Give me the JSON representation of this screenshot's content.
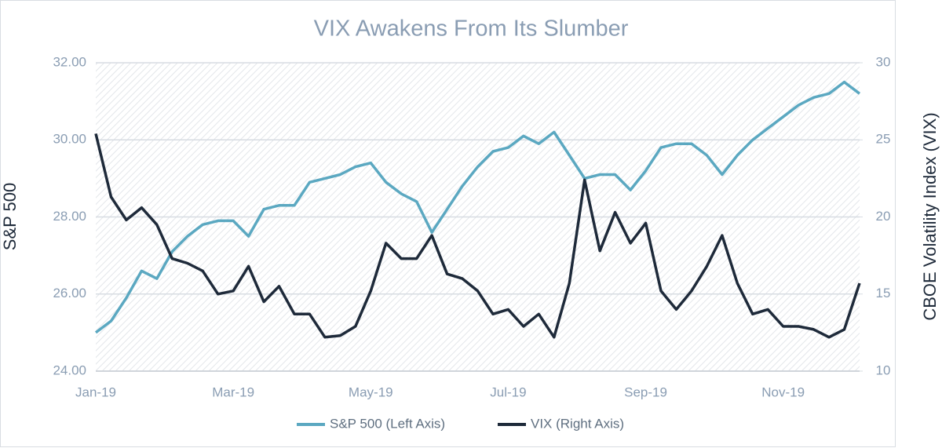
{
  "chart_data": {
    "type": "line",
    "title": "VIX Awakens From Its Slumber",
    "y_label": "S&P 500",
    "y2_label": "CBOE Volatility Index (VIX)",
    "categories": [
      "Jan-19",
      null,
      null,
      null,
      null,
      null,
      null,
      null,
      null,
      "Mar-19",
      null,
      null,
      null,
      null,
      null,
      null,
      null,
      null,
      "May-19",
      null,
      null,
      null,
      null,
      null,
      null,
      null,
      null,
      "Jul-19",
      null,
      null,
      null,
      null,
      null,
      null,
      null,
      null,
      "Sep-19",
      null,
      null,
      null,
      null,
      null,
      null,
      null,
      null,
      "Nov-19",
      null,
      null,
      null,
      null,
      null
    ],
    "series": [
      {
        "name": "S&P 500 (Left Axis)",
        "color": "#5ba8c1",
        "values": [
          25.0,
          25.3,
          25.9,
          26.6,
          26.4,
          27.1,
          27.5,
          27.8,
          27.9,
          27.9,
          27.5,
          28.2,
          28.3,
          28.3,
          28.9,
          29.0,
          29.1,
          29.3,
          29.4,
          28.9,
          28.6,
          28.4,
          27.6,
          28.2,
          28.8,
          29.3,
          29.7,
          29.8,
          30.1,
          29.9,
          30.2,
          29.6,
          29.0,
          29.1,
          29.1,
          28.7,
          29.2,
          29.8,
          29.9,
          29.9,
          29.6,
          29.1,
          29.6,
          30.0,
          30.3,
          30.6,
          30.9,
          31.1,
          31.2,
          31.5,
          31.2
        ]
      },
      {
        "name": "VIX (Right Axis)",
        "color": "#1e2a3a",
        "axis": "y2",
        "values": [
          25.4,
          21.3,
          19.8,
          20.6,
          19.5,
          17.3,
          17.0,
          16.5,
          15.0,
          15.2,
          16.8,
          14.5,
          15.5,
          13.7,
          13.7,
          12.2,
          12.3,
          12.9,
          15.2,
          18.3,
          17.3,
          17.3,
          18.8,
          16.3,
          16.0,
          15.2,
          13.7,
          14.0,
          12.9,
          13.7,
          12.2,
          15.7,
          22.4,
          17.8,
          20.3,
          18.3,
          19.6,
          15.2,
          14.0,
          15.2,
          16.8,
          18.8,
          15.7,
          13.7,
          14.0,
          12.9,
          12.9,
          12.7,
          12.2,
          12.7,
          15.7
        ]
      }
    ],
    "ylim": [
      24,
      32
    ],
    "yticks": [
      {
        "value": 24,
        "label": "24.00"
      },
      {
        "value": 26,
        "label": "26.00"
      },
      {
        "value": 28,
        "label": "28.00"
      },
      {
        "value": 30,
        "label": "30.00"
      },
      {
        "value": 32,
        "label": "32.00"
      }
    ],
    "y2lim": [
      10,
      30
    ],
    "y2ticks": [
      10,
      15,
      20,
      25,
      30
    ],
    "grid": true,
    "legend": "bottom"
  }
}
